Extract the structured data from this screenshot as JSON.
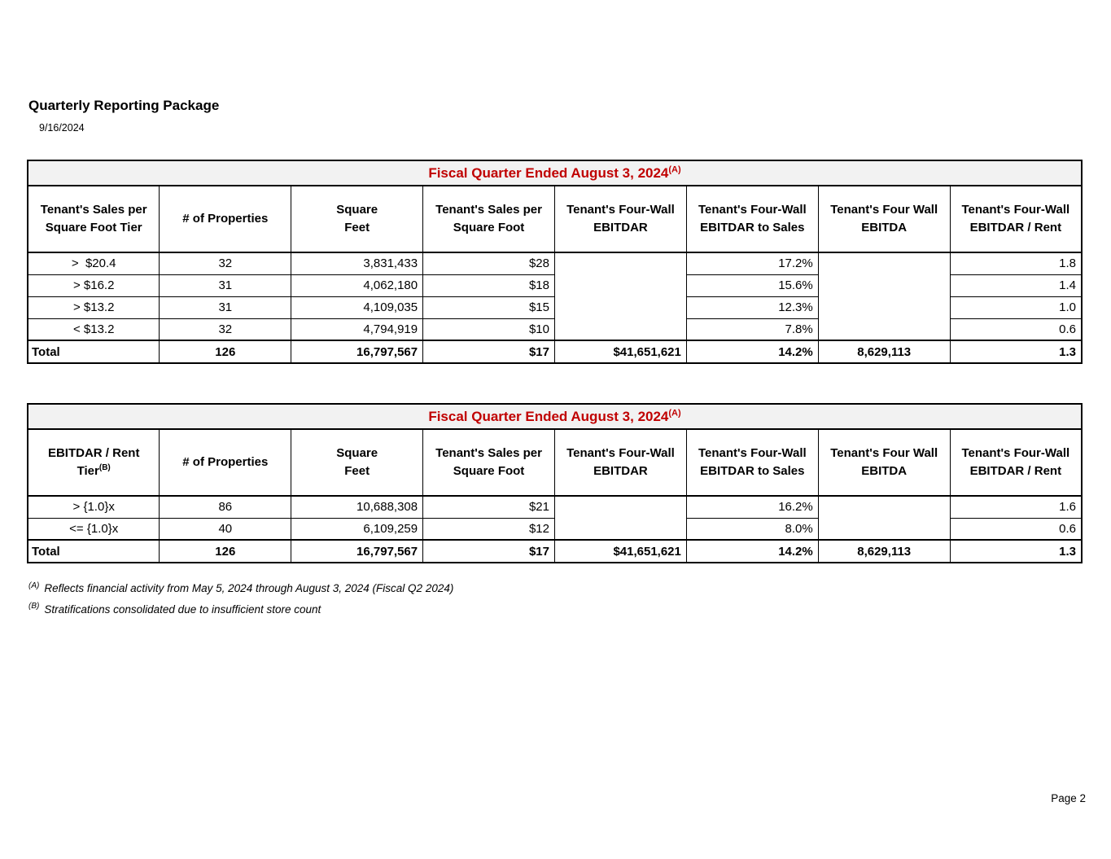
{
  "page": {
    "title": "Quarterly Reporting Package",
    "date": "9/16/2024",
    "page_number": "Page 2"
  },
  "colors": {
    "banner_text": "#c00000",
    "banner_bg": "#f2f2f2",
    "table_border": "#000000"
  },
  "tables": [
    {
      "id": "sales-per-sqft-tier",
      "banner": {
        "text": "Fiscal Quarter Ended August 3, 2024",
        "sup": "(A)"
      },
      "headers": [
        {
          "lines": [
            "Tenant's Sales per",
            "Square Foot Tier"
          ]
        },
        {
          "lines": [
            "# of Properties"
          ]
        },
        {
          "lines": [
            "Square",
            "Feet"
          ]
        },
        {
          "lines": [
            "Tenant's Sales per",
            "Square Foot"
          ]
        },
        {
          "lines": [
            "Tenant's Four-Wall",
            "EBITDAR"
          ]
        },
        {
          "lines": [
            "Tenant's Four-Wall",
            "EBITDAR to Sales"
          ]
        },
        {
          "lines": [
            "Tenant's Four Wall",
            "EBITDA"
          ]
        },
        {
          "lines": [
            "Tenant's Four-Wall",
            "EBITDAR / Rent"
          ]
        }
      ],
      "rows": [
        [
          ">  $20.4",
          "32",
          "3,831,433",
          "$28",
          "",
          "17.2%",
          "",
          "1.8"
        ],
        [
          "> $16.2",
          "31",
          "4,062,180",
          "$18",
          "",
          "15.6%",
          "",
          "1.4"
        ],
        [
          "> $13.2",
          "31",
          "4,109,035",
          "$15",
          "",
          "12.3%",
          "",
          "1.0"
        ],
        [
          "< $13.2",
          "32",
          "4,794,919",
          "$10",
          "",
          "7.8%",
          "",
          "0.6"
        ]
      ],
      "total": [
        "Total",
        "126",
        "16,797,567",
        "$17",
        "$41,651,621",
        "14.2%",
        "8,629,113",
        "1.3"
      ]
    },
    {
      "id": "ebitdar-rent-tier",
      "banner": {
        "text": "Fiscal Quarter Ended August 3, 2024",
        "sup": "(A)"
      },
      "headers": [
        {
          "lines": [
            "EBITDAR / Rent",
            "Tier"
          ],
          "sup": "(B)"
        },
        {
          "lines": [
            "# of Properties"
          ]
        },
        {
          "lines": [
            "Square",
            "Feet"
          ]
        },
        {
          "lines": [
            "Tenant's Sales per",
            "Square Foot"
          ]
        },
        {
          "lines": [
            "Tenant's Four-Wall",
            "EBITDAR"
          ]
        },
        {
          "lines": [
            "Tenant's Four-Wall",
            "EBITDAR to Sales"
          ]
        },
        {
          "lines": [
            "Tenant's Four Wall",
            "EBITDA"
          ]
        },
        {
          "lines": [
            "Tenant's Four-Wall",
            "EBITDAR / Rent"
          ]
        }
      ],
      "rows": [
        [
          "> {1.0}x",
          "86",
          "10,688,308",
          "$21",
          "",
          "16.2%",
          "",
          "1.6"
        ],
        [
          "<= {1.0}x",
          "40",
          "6,109,259",
          "$12",
          "",
          "8.0%",
          "",
          "0.6"
        ]
      ],
      "total": [
        "Total",
        "126",
        "16,797,567",
        "$17",
        "$41,651,621",
        "14.2%",
        "8,629,113",
        "1.3"
      ]
    }
  ],
  "footnotes": [
    {
      "marker": "(A)",
      "text": "Reflects financial activity from May 5, 2024 through August 3, 2024 (Fiscal Q2 2024)"
    },
    {
      "marker": "(B)",
      "text": "Stratifications consolidated due to insufficient store count"
    }
  ]
}
